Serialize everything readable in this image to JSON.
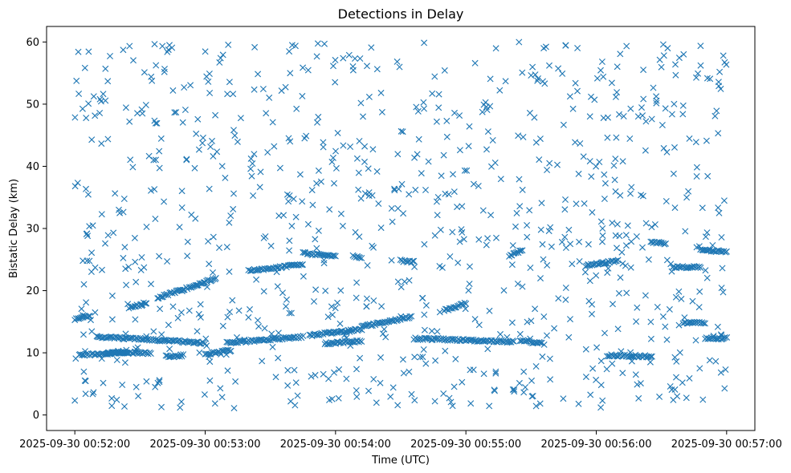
{
  "chart_data": {
    "type": "scatter",
    "title": "Detections in Delay",
    "xlabel": "Time (UTC)",
    "ylabel": "Bistatic Delay (km)",
    "marker": "x",
    "color": "#1f77b4",
    "grid": false,
    "xlim": [
      "2025-09-30 00:51:47",
      "2025-09-30 00:57:13"
    ],
    "ylim": [
      -2.5,
      62.5
    ],
    "x_ticks": [
      "2025-09-30 00:52:00",
      "2025-09-30 00:53:00",
      "2025-09-30 00:54:00",
      "2025-09-30 00:55:00",
      "2025-09-30 00:56:00",
      "2025-09-30 00:57:00"
    ],
    "y_ticks": [
      0,
      10,
      20,
      30,
      40,
      50,
      60
    ],
    "tracks": [
      {
        "start": "2025-09-30 00:52:00",
        "end": "2025-09-30 00:52:07",
        "y_start": 15.4,
        "y_end": 16.0
      },
      {
        "start": "2025-09-30 00:52:02",
        "end": "2025-09-30 00:52:24",
        "y_start": 9.6,
        "y_end": 10.1
      },
      {
        "start": "2025-09-30 00:52:10",
        "end": "2025-09-30 00:53:00",
        "y_start": 12.6,
        "y_end": 11.6
      },
      {
        "start": "2025-09-30 00:52:15",
        "end": "2025-09-30 00:52:35",
        "y_start": 10.0,
        "y_end": 10.0
      },
      {
        "start": "2025-09-30 00:52:25",
        "end": "2025-09-30 00:52:33",
        "y_start": 17.3,
        "y_end": 18.0
      },
      {
        "start": "2025-09-30 00:52:38",
        "end": "2025-09-30 00:53:05",
        "y_start": 18.8,
        "y_end": 22.0
      },
      {
        "start": "2025-09-30 00:52:42",
        "end": "2025-09-30 00:52:50",
        "y_start": 9.4,
        "y_end": 9.6
      },
      {
        "start": "2025-09-30 00:53:00",
        "end": "2025-09-30 00:53:12",
        "y_start": 9.8,
        "y_end": 10.4
      },
      {
        "start": "2025-09-30 00:53:10",
        "end": "2025-09-30 00:53:45",
        "y_start": 11.6,
        "y_end": 12.6
      },
      {
        "start": "2025-09-30 00:53:20",
        "end": "2025-09-30 00:53:45",
        "y_start": 23.2,
        "y_end": 24.2
      },
      {
        "start": "2025-09-30 00:53:45",
        "end": "2025-09-30 00:54:00",
        "y_start": 26.0,
        "y_end": 25.6
      },
      {
        "start": "2025-09-30 00:53:48",
        "end": "2025-09-30 00:54:12",
        "y_start": 12.8,
        "y_end": 13.8
      },
      {
        "start": "2025-09-30 00:53:55",
        "end": "2025-09-30 00:54:12",
        "y_start": 11.5,
        "y_end": 11.9
      },
      {
        "start": "2025-09-30 00:54:08",
        "end": "2025-09-30 00:54:12",
        "y_start": 25.6,
        "y_end": 25.4
      },
      {
        "start": "2025-09-30 00:54:12",
        "end": "2025-09-30 00:54:35",
        "y_start": 14.2,
        "y_end": 15.8
      },
      {
        "start": "2025-09-30 00:54:30",
        "end": "2025-09-30 00:54:36",
        "y_start": 24.8,
        "y_end": 24.6
      },
      {
        "start": "2025-09-30 00:54:36",
        "end": "2025-09-30 00:55:22",
        "y_start": 12.3,
        "y_end": 11.8
      },
      {
        "start": "2025-09-30 00:54:50",
        "end": "2025-09-30 00:55:00",
        "y_start": 16.8,
        "y_end": 18.0
      },
      {
        "start": "2025-09-30 00:55:20",
        "end": "2025-09-30 00:55:26",
        "y_start": 25.5,
        "y_end": 26.5
      },
      {
        "start": "2025-09-30 00:55:25",
        "end": "2025-09-30 00:55:35",
        "y_start": 11.9,
        "y_end": 11.6
      },
      {
        "start": "2025-09-30 00:55:55",
        "end": "2025-09-30 00:56:10",
        "y_start": 24.0,
        "y_end": 24.8
      },
      {
        "start": "2025-09-30 00:56:05",
        "end": "2025-09-30 00:56:25",
        "y_start": 9.6,
        "y_end": 9.4
      },
      {
        "start": "2025-09-30 00:56:25",
        "end": "2025-09-30 00:56:32",
        "y_start": 27.8,
        "y_end": 27.6
      },
      {
        "start": "2025-09-30 00:56:35",
        "end": "2025-09-30 00:56:48",
        "y_start": 23.8,
        "y_end": 23.8
      },
      {
        "start": "2025-09-30 00:56:40",
        "end": "2025-09-30 00:56:50",
        "y_start": 14.8,
        "y_end": 14.8
      },
      {
        "start": "2025-09-30 00:56:48",
        "end": "2025-09-30 00:57:00",
        "y_start": 26.6,
        "y_end": 26.2
      },
      {
        "start": "2025-09-30 00:56:50",
        "end": "2025-09-30 00:57:00",
        "y_start": 12.4,
        "y_end": 12.3
      }
    ],
    "x_range": [
      "2025-09-30 00:52:00",
      "2025-09-30 00:57:00"
    ],
    "y_range": [
      1,
      60
    ]
  }
}
